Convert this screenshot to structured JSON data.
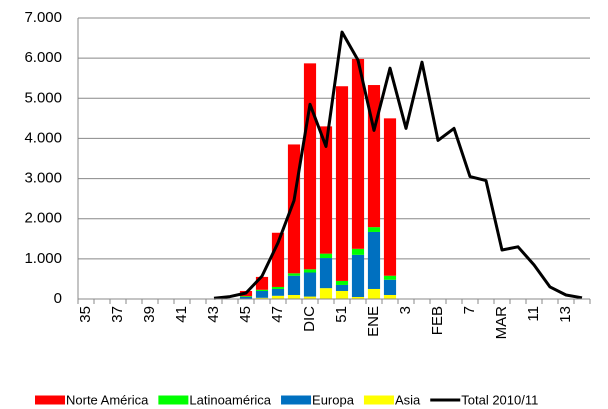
{
  "chart_data": {
    "type": "bar",
    "stacked": true,
    "categories": [
      "35",
      null,
      "37",
      null,
      "39",
      null,
      "41",
      null,
      "43",
      null,
      "45",
      null,
      "47",
      null,
      "DIC",
      null,
      "51",
      null,
      "ENE",
      null,
      "3",
      null,
      "FEB",
      null,
      "7",
      null,
      "MAR",
      null,
      "11",
      null,
      "13",
      null
    ],
    "series": [
      {
        "name": "Norte América",
        "color": "#ff0000",
        "values": [
          null,
          null,
          null,
          null,
          null,
          null,
          null,
          null,
          null,
          null,
          130,
          320,
          1350,
          3210,
          5130,
          3170,
          4850,
          4730,
          3540,
          3920,
          null,
          null,
          null,
          null,
          null,
          null,
          null,
          null,
          null,
          null,
          null,
          null
        ]
      },
      {
        "name": "Latinoamérica",
        "color": "#00ff00",
        "values": [
          null,
          null,
          null,
          null,
          null,
          null,
          null,
          null,
          null,
          null,
          20,
          30,
          50,
          60,
          80,
          110,
          100,
          150,
          120,
          100,
          null,
          null,
          null,
          null,
          null,
          null,
          null,
          null,
          null,
          null,
          null,
          null
        ]
      },
      {
        "name": "Europa",
        "color": "#0070c0",
        "values": [
          null,
          null,
          null,
          null,
          null,
          null,
          null,
          null,
          null,
          null,
          50,
          170,
          170,
          480,
          600,
          750,
          150,
          1050,
          1420,
          380,
          null,
          null,
          null,
          null,
          null,
          null,
          null,
          null,
          null,
          null,
          null,
          null
        ]
      },
      {
        "name": "Asia",
        "color": "#ffff00",
        "values": [
          null,
          null,
          null,
          null,
          null,
          null,
          null,
          null,
          null,
          null,
          0,
          30,
          80,
          100,
          60,
          270,
          200,
          50,
          250,
          100,
          null,
          null,
          null,
          null,
          null,
          null,
          null,
          null,
          null,
          null,
          null,
          null
        ]
      },
      {
        "name": "Total 2010/11",
        "color": "#000000",
        "type": "line",
        "values": [
          null,
          null,
          null,
          null,
          null,
          null,
          null,
          null,
          20,
          60,
          150,
          570,
          1400,
          2450,
          4850,
          3800,
          6650,
          5950,
          4200,
          5750,
          4250,
          5900,
          3950,
          4250,
          3050,
          2950,
          1220,
          1300,
          850,
          300,
          100,
          30
        ]
      }
    ],
    "ylim": [
      0,
      7000
    ],
    "yticks": [
      0,
      {
        "value": 1000,
        "label": "1.000"
      },
      {
        "value": 2000,
        "label": "2.000"
      },
      {
        "value": 3000,
        "label": "3.000"
      },
      {
        "value": 4000,
        "label": "4.000"
      },
      {
        "value": 5000,
        "label": "5.000"
      },
      {
        "value": 6000,
        "label": "6.000"
      },
      {
        "value": 7000,
        "label": "7.000"
      }
    ],
    "grid": true,
    "legend": "bottom"
  }
}
